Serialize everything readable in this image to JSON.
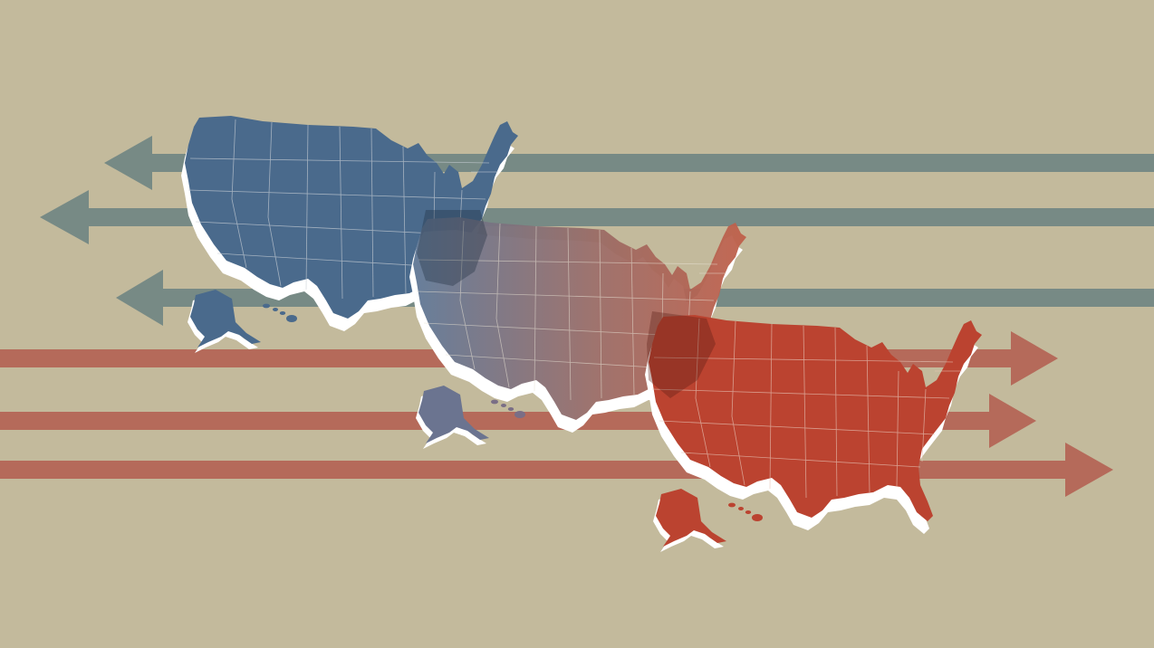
{
  "illustration": {
    "background_color": "#c3ba9c",
    "arrows": {
      "left_color": "#778a85",
      "right_color": "#b56a5a",
      "left_count": 3,
      "right_count": 3
    },
    "maps": [
      {
        "name": "blue-us-map",
        "color": "#4a6a8c"
      },
      {
        "name": "gradient-us-map",
        "color_start": "#5f7896",
        "color_end": "#c0604a"
      },
      {
        "name": "red-us-map",
        "color": "#bb4330"
      }
    ],
    "shadow_color": "#ffffff",
    "state_line_color": "#e7e1d3"
  }
}
